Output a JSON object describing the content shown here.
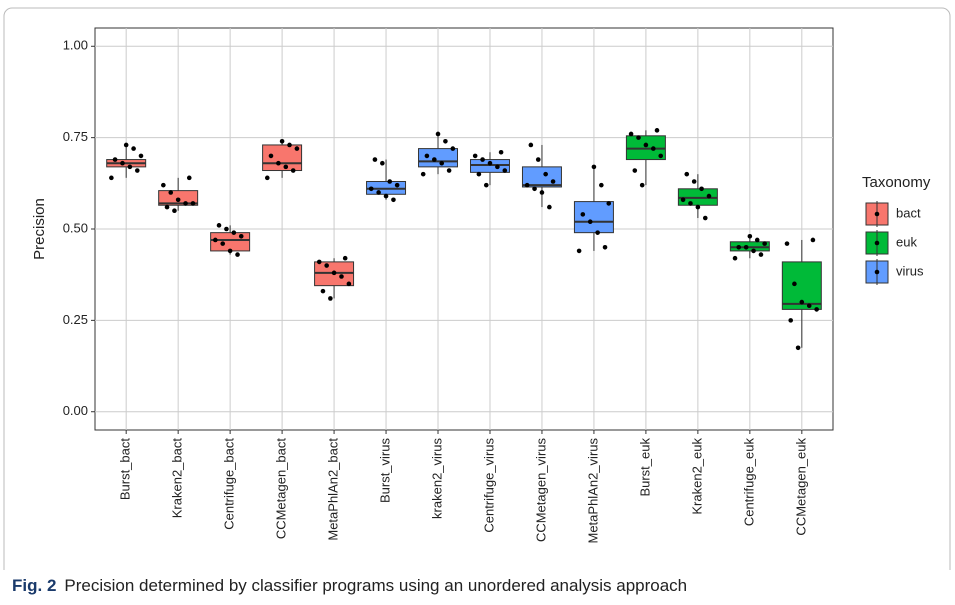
{
  "chart_data": {
    "type": "box",
    "ylabel": "Precision",
    "legend_title": "Taxonomy",
    "caption_label": "Fig. 2",
    "caption": "Precision determined by classifier programs using an unordered analysis approach",
    "ylim": [
      -0.05,
      1.05
    ],
    "yticks": [
      {
        "value": 0,
        "label": "0.00"
      },
      {
        "value": 0.25,
        "label": "0.25"
      },
      {
        "value": 0.5,
        "label": "0.50"
      },
      {
        "value": 0.75,
        "label": "0.75"
      },
      {
        "value": 1,
        "label": "1.00"
      }
    ],
    "grid": true,
    "groups": [
      {
        "name": "bact",
        "color": "#F8766D"
      },
      {
        "name": "euk",
        "color": "#00BA38"
      },
      {
        "name": "virus",
        "color": "#619CFF"
      }
    ],
    "categories": [
      "Burst_bact",
      "Kraken2_bact",
      "Centrifuge_bact",
      "CCMetagen_bact",
      "MetaPhlAn2_bact",
      "Burst_virus",
      "kraken2_virus",
      "Centrifuge_virus",
      "CCMetagen_virus",
      "MetaPhlAn2_virus",
      "Burst_euk",
      "Kraken2_euk",
      "Centrifuge_euk",
      "CCMetagen_euk"
    ],
    "group": [
      0,
      0,
      0,
      0,
      0,
      2,
      2,
      2,
      2,
      2,
      1,
      1,
      1,
      1
    ],
    "min": [
      0.64,
      0.55,
      0.43,
      0.64,
      0.31,
      0.58,
      0.65,
      0.62,
      0.56,
      0.44,
      0.62,
      0.53,
      0.42,
      0.175
    ],
    "q1": [
      0.67,
      0.565,
      0.44,
      0.66,
      0.345,
      0.595,
      0.67,
      0.655,
      0.615,
      0.49,
      0.69,
      0.565,
      0.44,
      0.28
    ],
    "median": [
      0.68,
      0.57,
      0.47,
      0.68,
      0.38,
      0.61,
      0.685,
      0.675,
      0.62,
      0.52,
      0.72,
      0.585,
      0.45,
      0.295
    ],
    "q3": [
      0.69,
      0.605,
      0.49,
      0.73,
      0.41,
      0.63,
      0.72,
      0.69,
      0.67,
      0.575,
      0.755,
      0.61,
      0.465,
      0.41
    ],
    "max": [
      0.73,
      0.64,
      0.51,
      0.74,
      0.42,
      0.69,
      0.76,
      0.71,
      0.73,
      0.67,
      0.77,
      0.65,
      0.48,
      0.47
    ],
    "points": [
      [
        0.64,
        0.66,
        0.67,
        0.68,
        0.69,
        0.7,
        0.72,
        0.73
      ],
      [
        0.55,
        0.56,
        0.57,
        0.57,
        0.58,
        0.6,
        0.62,
        0.64
      ],
      [
        0.43,
        0.44,
        0.46,
        0.47,
        0.48,
        0.49,
        0.5,
        0.51
      ],
      [
        0.64,
        0.66,
        0.67,
        0.68,
        0.7,
        0.72,
        0.73,
        0.74
      ],
      [
        0.31,
        0.33,
        0.35,
        0.37,
        0.38,
        0.4,
        0.41,
        0.42
      ],
      [
        0.58,
        0.59,
        0.6,
        0.61,
        0.62,
        0.63,
        0.68,
        0.69
      ],
      [
        0.65,
        0.66,
        0.68,
        0.69,
        0.7,
        0.72,
        0.74,
        0.76
      ],
      [
        0.62,
        0.65,
        0.66,
        0.67,
        0.68,
        0.69,
        0.7,
        0.71
      ],
      [
        0.56,
        0.6,
        0.61,
        0.62,
        0.63,
        0.65,
        0.69,
        0.73
      ],
      [
        0.44,
        0.45,
        0.49,
        0.52,
        0.54,
        0.57,
        0.62,
        0.67
      ],
      [
        0.62,
        0.66,
        0.7,
        0.72,
        0.73,
        0.75,
        0.76,
        0.77
      ],
      [
        0.53,
        0.56,
        0.57,
        0.58,
        0.59,
        0.61,
        0.63,
        0.65
      ],
      [
        0.42,
        0.43,
        0.44,
        0.45,
        0.45,
        0.46,
        0.47,
        0.48
      ],
      [
        0.175,
        0.25,
        0.28,
        0.29,
        0.3,
        0.35,
        0.46,
        0.47
      ]
    ]
  }
}
